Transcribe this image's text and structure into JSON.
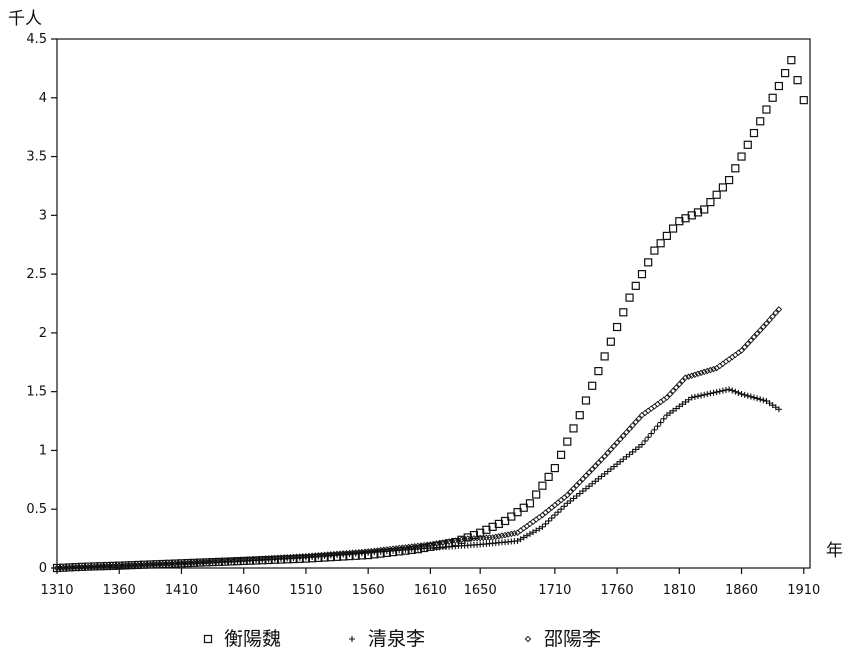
{
  "chart_data": {
    "type": "scatter",
    "ylabel": "千人",
    "xlabel": "年",
    "xlim": [
      1310,
      1915
    ],
    "ylim": [
      0,
      4.5
    ],
    "x_ticks": [
      1310,
      1360,
      1410,
      1460,
      1510,
      1560,
      1610,
      1650,
      1710,
      1760,
      1810,
      1860,
      1910
    ],
    "y_ticks": [
      0,
      0.5,
      1,
      1.5,
      2,
      2.5,
      3,
      3.5,
      4,
      4.5
    ],
    "grid": false,
    "legend_position": "bottom",
    "series": [
      {
        "name": "衡陽魏",
        "marker": "square",
        "points": [
          [
            1310,
            0
          ],
          [
            1330,
            0.01
          ],
          [
            1360,
            0.02
          ],
          [
            1410,
            0.04
          ],
          [
            1460,
            0.06
          ],
          [
            1510,
            0.08
          ],
          [
            1560,
            0.11
          ],
          [
            1600,
            0.16
          ],
          [
            1630,
            0.22
          ],
          [
            1650,
            0.3
          ],
          [
            1670,
            0.4
          ],
          [
            1690,
            0.55
          ],
          [
            1710,
            0.85
          ],
          [
            1730,
            1.3
          ],
          [
            1750,
            1.8
          ],
          [
            1770,
            2.3
          ],
          [
            1790,
            2.7
          ],
          [
            1810,
            2.95
          ],
          [
            1830,
            3.05
          ],
          [
            1850,
            3.3
          ],
          [
            1870,
            3.7
          ],
          [
            1890,
            4.1
          ],
          [
            1900,
            4.32
          ],
          [
            1910,
            3.98
          ]
        ]
      },
      {
        "name": "清泉李",
        "marker": "plus",
        "points": [
          [
            1310,
            0
          ],
          [
            1360,
            0.02
          ],
          [
            1410,
            0.04
          ],
          [
            1460,
            0.06
          ],
          [
            1510,
            0.09
          ],
          [
            1560,
            0.13
          ],
          [
            1610,
            0.17
          ],
          [
            1650,
            0.2
          ],
          [
            1680,
            0.23
          ],
          [
            1700,
            0.35
          ],
          [
            1720,
            0.55
          ],
          [
            1750,
            0.8
          ],
          [
            1780,
            1.05
          ],
          [
            1800,
            1.3
          ],
          [
            1820,
            1.45
          ],
          [
            1850,
            1.52
          ],
          [
            1860,
            1.48
          ],
          [
            1880,
            1.42
          ],
          [
            1890,
            1.35
          ]
        ]
      },
      {
        "name": "邵陽李",
        "marker": "diamond",
        "points": [
          [
            1310,
            0
          ],
          [
            1360,
            0.02
          ],
          [
            1410,
            0.04
          ],
          [
            1460,
            0.07
          ],
          [
            1510,
            0.1
          ],
          [
            1560,
            0.14
          ],
          [
            1610,
            0.2
          ],
          [
            1640,
            0.25
          ],
          [
            1660,
            0.26
          ],
          [
            1680,
            0.3
          ],
          [
            1700,
            0.45
          ],
          [
            1720,
            0.62
          ],
          [
            1750,
            0.95
          ],
          [
            1780,
            1.3
          ],
          [
            1800,
            1.45
          ],
          [
            1815,
            1.62
          ],
          [
            1840,
            1.7
          ],
          [
            1860,
            1.85
          ],
          [
            1880,
            2.08
          ],
          [
            1890,
            2.2
          ]
        ]
      }
    ]
  }
}
